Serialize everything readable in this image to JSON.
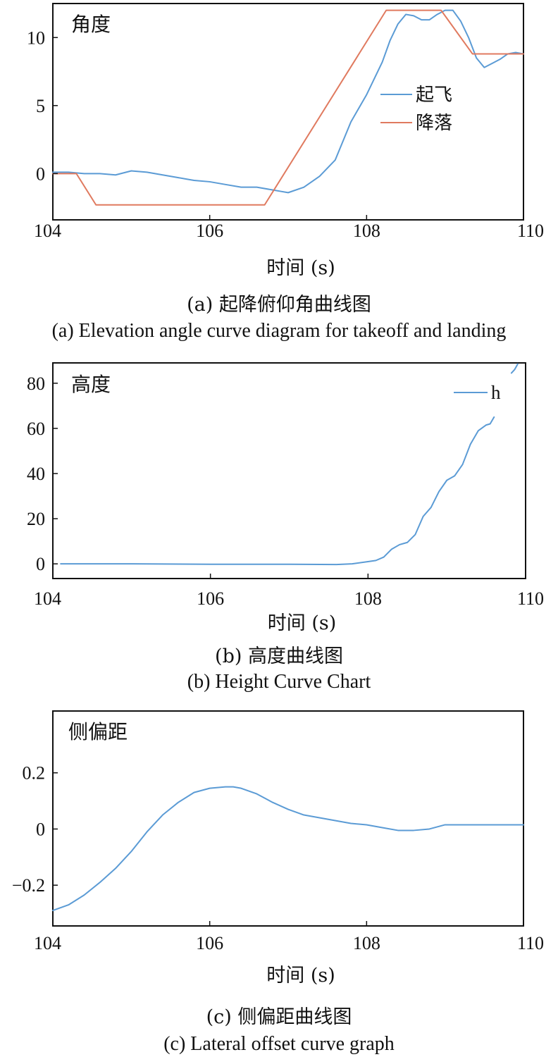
{
  "colors": {
    "takeoff": "#5b9bd5",
    "landing": "#e07a5f",
    "axis": "#111111"
  },
  "chart_data": [
    {
      "type": "line",
      "inner_label": "角度",
      "xlabel": "时间 (s)",
      "ylabel": "",
      "xlim": [
        104,
        110
      ],
      "ylim": [
        -3.4,
        12.5
      ],
      "xticks": [
        104,
        106,
        108,
        110
      ],
      "xtick_labels": [
        "104",
        "106",
        "108",
        "110"
      ],
      "yticks": [
        10,
        5,
        0
      ],
      "ytick_labels": [
        "10",
        "5",
        "0"
      ],
      "legend_position": "upper-right",
      "caption_zh": "(a) 起降俯仰角曲线图",
      "caption_en": "(a) Elevation angle curve diagram for takeoff and landing",
      "series": [
        {
          "name": "起飞",
          "color": "#5b9bd5",
          "x": [
            104.0,
            104.2,
            104.4,
            104.6,
            104.8,
            105.0,
            105.2,
            105.4,
            105.6,
            105.8,
            106.0,
            106.2,
            106.4,
            106.6,
            106.8,
            106.9,
            107.0,
            107.2,
            107.4,
            107.6,
            107.8,
            108.0,
            108.2,
            108.3,
            108.4,
            108.5,
            108.6,
            108.7,
            108.8,
            108.9,
            109.0,
            109.1,
            109.2,
            109.3,
            109.4,
            109.5,
            109.6,
            109.7,
            109.8,
            109.9,
            110.0
          ],
          "y": [
            0.1,
            0.1,
            0.0,
            0.0,
            -0.1,
            0.2,
            0.1,
            -0.1,
            -0.3,
            -0.5,
            -0.6,
            -0.8,
            -1.0,
            -1.0,
            -1.2,
            -1.3,
            -1.4,
            -1.0,
            -0.2,
            1.0,
            3.8,
            5.8,
            8.2,
            9.8,
            11.0,
            11.7,
            11.6,
            11.3,
            11.3,
            11.7,
            12.0,
            12.0,
            11.2,
            10.0,
            8.5,
            7.8,
            8.1,
            8.4,
            8.8,
            8.9,
            8.8
          ]
        },
        {
          "name": "降落",
          "color": "#e07a5f",
          "x": [
            104.0,
            104.3,
            104.55,
            106.7,
            108.25,
            108.95,
            109.35,
            110.0
          ],
          "y": [
            0.0,
            0.0,
            -2.3,
            -2.3,
            12.0,
            12.0,
            8.8,
            8.8
          ]
        }
      ]
    },
    {
      "type": "line",
      "inner_label": "高度",
      "xlabel": "时间 (s)",
      "ylabel": "",
      "xlim": [
        104,
        110
      ],
      "ylim": [
        -6.5,
        89
      ],
      "xticks": [
        104,
        106,
        108,
        110
      ],
      "xtick_labels": [
        "104",
        "106",
        "108",
        "110"
      ],
      "yticks": [
        80,
        60,
        40,
        20,
        0
      ],
      "ytick_labels": [
        "80",
        "60",
        "40",
        "20",
        "0"
      ],
      "legend_position": "upper-right",
      "caption_zh": "(b) 高度曲线图",
      "caption_en": "(b) Height Curve Chart",
      "series": [
        {
          "name": "h",
          "color": "#5b9bd5",
          "x": [
            104.1,
            105.0,
            106.0,
            107.0,
            107.6,
            107.8,
            108.0,
            108.1,
            108.2,
            108.3,
            108.4,
            108.5,
            108.6,
            108.7,
            108.8,
            108.9,
            109.0,
            109.1,
            109.2,
            109.3,
            109.4,
            109.5,
            109.55,
            109.6
          ],
          "y": [
            0.0,
            0.0,
            -0.2,
            -0.2,
            -0.3,
            0.0,
            1.0,
            1.5,
            3.0,
            6.5,
            8.5,
            9.5,
            13.0,
            21.0,
            25.0,
            32.0,
            37.0,
            39.0,
            44.0,
            53.0,
            59.0,
            61.5,
            62.0,
            65.0
          ]
        },
        {
          "name": "",
          "color": "#5b9bd5",
          "x": [
            109.82,
            109.86,
            109.9
          ],
          "y": [
            84.5,
            86.0,
            88.5
          ]
        }
      ]
    },
    {
      "type": "line",
      "inner_label": "侧偏距",
      "xlabel": "时间 (s)",
      "ylabel": "",
      "xlim": [
        104,
        110
      ],
      "ylim": [
        -0.345,
        0.42
      ],
      "xticks": [
        104,
        106,
        108,
        110
      ],
      "xtick_labels": [
        "104",
        "106",
        "108",
        "110"
      ],
      "yticks": [
        0.2,
        0,
        -0.2
      ],
      "ytick_labels": [
        "0.2",
        "0",
        "−0.2"
      ],
      "legend_position": "",
      "caption_zh": "(c) 侧偏距曲线图",
      "caption_en": "(c) Lateral offset curve graph",
      "series": [
        {
          "name": "",
          "color": "#5b9bd5",
          "x": [
            104.0,
            104.2,
            104.4,
            104.6,
            104.8,
            105.0,
            105.2,
            105.4,
            105.6,
            105.8,
            106.0,
            106.2,
            106.3,
            106.4,
            106.6,
            106.8,
            107.0,
            107.2,
            107.4,
            107.6,
            107.8,
            108.0,
            108.2,
            108.4,
            108.6,
            108.8,
            109.0,
            109.2,
            109.5,
            110.0
          ],
          "y": [
            -0.29,
            -0.27,
            -0.235,
            -0.19,
            -0.14,
            -0.08,
            -0.01,
            0.05,
            0.095,
            0.13,
            0.145,
            0.15,
            0.15,
            0.145,
            0.125,
            0.095,
            0.07,
            0.05,
            0.04,
            0.03,
            0.02,
            0.015,
            0.005,
            -0.005,
            -0.005,
            0.0,
            0.015,
            0.015,
            0.015,
            0.015
          ]
        }
      ]
    }
  ]
}
